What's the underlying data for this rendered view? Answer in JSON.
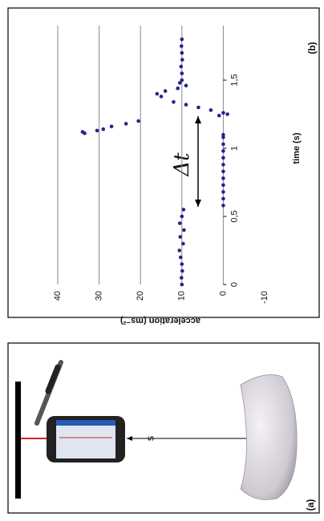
{
  "chart_data": {
    "type": "scatter",
    "panel_label": "(b)",
    "x_label": "time (s)",
    "y_label": "acceleration (ms⁻²)",
    "annotation": "Δt",
    "x": [
      0,
      0.05,
      0.1,
      0.15,
      0.2,
      0.25,
      0.3,
      0.35,
      0.4,
      0.45,
      0.5,
      0.55,
      0.58,
      0.63,
      0.68,
      0.73,
      0.78,
      0.83,
      0.88,
      0.93,
      0.98,
      1.03,
      1.08,
      1.1,
      1.11,
      1.12,
      1.13,
      1.14,
      1.16,
      1.18,
      1.2,
      1.24,
      1.25,
      1.26,
      1.28,
      1.3,
      1.32,
      1.34,
      1.38,
      1.4,
      1.42,
      1.44,
      1.46,
      1.48,
      1.5,
      1.55,
      1.6,
      1.65,
      1.7,
      1.75,
      1.8
    ],
    "y": [
      10,
      10.1,
      9.9,
      10,
      10.3,
      10.6,
      9.7,
      10.4,
      9.5,
      10.5,
      10,
      9.6,
      0,
      0,
      0,
      0,
      0,
      0,
      0,
      0,
      0,
      0,
      0,
      0,
      33.5,
      34,
      30.5,
      29,
      27,
      23.5,
      20.5,
      1,
      -1,
      0,
      3,
      6,
      9,
      12,
      15,
      16,
      14,
      11,
      9,
      10.5,
      10,
      10,
      10.2,
      9.9,
      10,
      10.1,
      10
    ],
    "color": "#23238e",
    "xlim": [
      0,
      1.9
    ],
    "ylim": [
      -10,
      40
    ],
    "xticks": [
      0,
      {
        "value": 0.5,
        "label": "0,5"
      },
      1,
      {
        "value": 1.5,
        "label": "1,5"
      }
    ],
    "yticks": [
      -10,
      0,
      10,
      20,
      30,
      40
    ],
    "grid": true
  },
  "diagram": {
    "distance_label": "s",
    "panel_label": "(a)"
  }
}
